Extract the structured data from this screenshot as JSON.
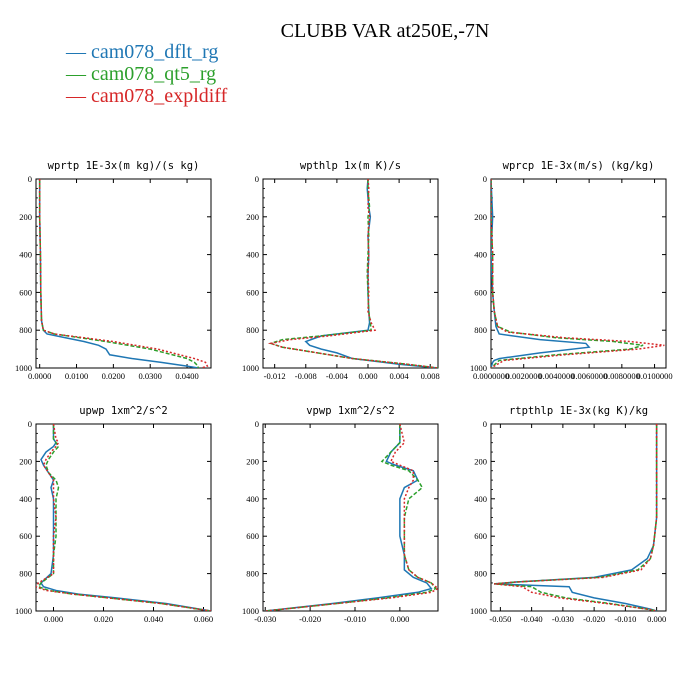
{
  "title": "CLUBB VAR at250E,-7N",
  "legend": [
    {
      "name": "cam078_dflt_rg",
      "color": "#1f77b4"
    },
    {
      "name": "cam078_qt5_rg",
      "color": "#2ca02c"
    },
    {
      "name": "cam078_expldiff",
      "color": "#d62728"
    }
  ],
  "chart_data": [
    {
      "type": "line",
      "title": "wprtp  1E-3x(m kg)/(s kg)",
      "xlim": [
        -0.001,
        0.0465
      ],
      "ylim": [
        1000,
        0
      ],
      "xticks": [
        0,
        0.01,
        0.02,
        0.03,
        0.04
      ],
      "xtick_labels": [
        "0.0000",
        "0.0100",
        "0.0200",
        "0.0300",
        "0.0400"
      ],
      "yticks": [
        0,
        200,
        400,
        600,
        800,
        1000
      ],
      "series": [
        {
          "name": "cam078_dflt_rg",
          "y": [
            0,
            200,
            400,
            600,
            750,
            800,
            820,
            840,
            860,
            880,
            900,
            930,
            950,
            970,
            990,
            1000
          ],
          "x": [
            0,
            0,
            0.0002,
            0.0003,
            0.0005,
            0.001,
            0.002,
            0.007,
            0.012,
            0.016,
            0.018,
            0.019,
            0.025,
            0.033,
            0.04,
            0.043
          ]
        },
        {
          "name": "cam078_qt5_rg",
          "y": [
            0,
            200,
            400,
            600,
            750,
            800,
            820,
            840,
            860,
            880,
            900,
            930,
            950,
            970,
            990,
            1000
          ],
          "x": [
            0,
            0,
            0.0002,
            0.0003,
            0.0005,
            0.001,
            0.004,
            0.011,
            0.018,
            0.024,
            0.03,
            0.036,
            0.04,
            0.042,
            0.043,
            0.043
          ]
        },
        {
          "name": "cam078_expldiff",
          "y": [
            0,
            200,
            400,
            600,
            750,
            800,
            820,
            840,
            860,
            880,
            900,
            930,
            950,
            970,
            990,
            1000
          ],
          "x": [
            0,
            0,
            0.0002,
            0.0003,
            0.0005,
            0.001,
            0.004,
            0.012,
            0.02,
            0.026,
            0.032,
            0.038,
            0.042,
            0.045,
            0.0455,
            0.044
          ]
        }
      ]
    },
    {
      "type": "line",
      "title": "wpthlp  1x(m K)/s",
      "xlim": [
        -0.0135,
        0.009
      ],
      "ylim": [
        1000,
        0
      ],
      "xticks": [
        -0.012,
        -0.008,
        -0.004,
        0,
        0.004,
        0.008
      ],
      "xtick_labels": [
        "-0.012",
        "-0.008",
        "-0.004",
        "0.000",
        "0.004",
        "0.008"
      ],
      "yticks": [
        0,
        200,
        400,
        600,
        800,
        1000
      ],
      "series": [
        {
          "name": "cam078_dflt_rg",
          "y": [
            0,
            50,
            150,
            200,
            300,
            400,
            500,
            600,
            700,
            760,
            800,
            830,
            860,
            880,
            900,
            920,
            950,
            980,
            1000
          ],
          "x": [
            0,
            -0.0001,
            0.0001,
            0.0003,
            0,
            0.0001,
            0,
            0,
            0.0001,
            0.0002,
            0,
            -0.006,
            -0.008,
            -0.0075,
            -0.006,
            -0.004,
            -0.002,
            0.004,
            0.009
          ]
        },
        {
          "name": "cam078_qt5_rg",
          "y": [
            0,
            50,
            150,
            200,
            300,
            400,
            500,
            600,
            700,
            760,
            800,
            830,
            850,
            870,
            890,
            910,
            950,
            980,
            1000
          ],
          "x": [
            0,
            0,
            0.0002,
            0,
            0.0001,
            0,
            -0.0001,
            0,
            0.0001,
            0.0003,
            0.0004,
            -0.006,
            -0.011,
            -0.0125,
            -0.011,
            -0.008,
            -0.002,
            0.005,
            0.009
          ]
        },
        {
          "name": "cam078_expldiff",
          "y": [
            0,
            50,
            150,
            200,
            300,
            400,
            500,
            600,
            700,
            760,
            800,
            830,
            850,
            870,
            890,
            910,
            950,
            980,
            1000
          ],
          "x": [
            0,
            0.0001,
            0,
            0.0002,
            0,
            0.0001,
            0,
            0.0001,
            0,
            0.0004,
            0.0009,
            -0.005,
            -0.01,
            -0.0125,
            -0.011,
            -0.008,
            -0.002,
            0.005,
            0.009
          ]
        }
      ]
    },
    {
      "type": "line",
      "title": "wprcp  1E-3x(m/s) (kg/kg)",
      "xlim": [
        0,
        0.0107
      ],
      "ylim": [
        1000,
        0
      ],
      "xticks": [
        0,
        0.002,
        0.004,
        0.006,
        0.008,
        0.01
      ],
      "xtick_labels": [
        "0.0000000",
        "0.0020000",
        "0.0040000",
        "0.0060000",
        "0.0080000",
        "0.0100000"
      ],
      "yticks": [
        0,
        200,
        400,
        600,
        800,
        1000
      ],
      "series": [
        {
          "name": "cam078_dflt_rg",
          "y": [
            0,
            200,
            400,
            600,
            700,
            780,
            820,
            850,
            870,
            890,
            920,
            950,
            960,
            970,
            1000
          ],
          "x": [
            0,
            0.0001,
            0,
            0.0001,
            0.0002,
            0.0003,
            0.0005,
            0.003,
            0.0058,
            0.006,
            0.003,
            0.0005,
            0.0002,
            0.0001,
            0
          ]
        },
        {
          "name": "cam078_qt5_rg",
          "y": [
            0,
            200,
            400,
            600,
            700,
            780,
            810,
            840,
            860,
            880,
            900,
            930,
            960,
            1000
          ],
          "x": [
            0,
            0,
            0.0001,
            0.0001,
            0.0002,
            0.0004,
            0.0012,
            0.004,
            0.0075,
            0.0093,
            0.0085,
            0.004,
            0.0005,
            0
          ]
        },
        {
          "name": "cam078_expldiff",
          "y": [
            0,
            200,
            400,
            600,
            700,
            780,
            810,
            840,
            860,
            880,
            900,
            930,
            960,
            1000
          ],
          "x": [
            0,
            0,
            0.0001,
            0.0001,
            0.0002,
            0.0004,
            0.001,
            0.0045,
            0.0085,
            0.0106,
            0.009,
            0.0045,
            0.0008,
            0
          ]
        }
      ]
    },
    {
      "type": "line",
      "title": "upwp  1xm^2/s^2",
      "xlim": [
        -0.007,
        0.063
      ],
      "ylim": [
        1000,
        0
      ],
      "xticks": [
        0,
        0.02,
        0.04,
        0.06
      ],
      "xtick_labels": [
        "0.000",
        "0.020",
        "0.040",
        "0.060"
      ],
      "yticks": [
        0,
        200,
        400,
        600,
        800,
        1000
      ],
      "series": [
        {
          "name": "cam078_dflt_rg",
          "y": [
            0,
            80,
            100,
            120,
            150,
            190,
            220,
            260,
            300,
            340,
            400,
            500,
            600,
            700,
            800,
            850,
            870,
            890,
            910,
            930,
            960,
            1000
          ],
          "x": [
            0,
            0,
            0.001,
            0,
            -0.003,
            -0.005,
            -0.004,
            -0.002,
            0,
            -0.001,
            0,
            0,
            0,
            0,
            -0.001,
            -0.005,
            -0.004,
            0.001,
            0.01,
            0.025,
            0.045,
            0.063
          ]
        },
        {
          "name": "cam078_qt5_rg",
          "y": [
            0,
            80,
            100,
            120,
            150,
            190,
            220,
            260,
            300,
            340,
            400,
            500,
            600,
            700,
            800,
            850,
            870,
            890,
            910,
            930,
            960,
            1000
          ],
          "x": [
            0,
            0,
            0.001,
            0.002,
            0,
            -0.002,
            -0.003,
            -0.002,
            0.001,
            0.002,
            0.001,
            0.001,
            0.001,
            0,
            0,
            -0.005,
            -0.006,
            -0.002,
            0.008,
            0.022,
            0.043,
            0.063
          ]
        },
        {
          "name": "cam078_expldiff",
          "y": [
            0,
            80,
            100,
            120,
            150,
            190,
            220,
            260,
            300,
            340,
            400,
            500,
            600,
            700,
            800,
            850,
            870,
            890,
            910,
            930,
            960,
            1000
          ],
          "x": [
            0,
            0.001,
            0.002,
            0.001,
            -0.001,
            -0.003,
            -0.004,
            -0.002,
            0,
            0,
            0,
            0.001,
            0,
            0,
            0,
            -0.006,
            -0.007,
            -0.003,
            0.008,
            0.022,
            0.043,
            0.063
          ]
        }
      ]
    },
    {
      "type": "line",
      "title": "vpwp  1xm^2/s^2",
      "xlim": [
        -0.0305,
        0.0085
      ],
      "ylim": [
        1000,
        0
      ],
      "xticks": [
        -0.03,
        -0.02,
        -0.01,
        0
      ],
      "xtick_labels": [
        "-0.030",
        "-0.020",
        "-0.010",
        "0.000"
      ],
      "yticks": [
        0,
        200,
        400,
        600,
        800,
        1000
      ],
      "series": [
        {
          "name": "cam078_dflt_rg",
          "y": [
            0,
            100,
            150,
            200,
            220,
            250,
            300,
            340,
            400,
            500,
            600,
            700,
            780,
            820,
            850,
            880,
            900,
            930,
            960,
            1000
          ],
          "x": [
            0,
            0,
            -0.002,
            -0.003,
            -0.001,
            0.003,
            0.004,
            0.001,
            0,
            0,
            0,
            0.001,
            0.001,
            0.003,
            0.006,
            0.007,
            0.004,
            -0.005,
            -0.015,
            -0.03
          ]
        },
        {
          "name": "cam078_qt5_rg",
          "y": [
            0,
            100,
            150,
            200,
            220,
            250,
            300,
            340,
            400,
            500,
            600,
            700,
            780,
            820,
            850,
            880,
            900,
            930,
            960,
            1000
          ],
          "x": [
            0,
            0,
            -0.002,
            -0.004,
            -0.002,
            0.002,
            0.004,
            0.005,
            0.002,
            0.001,
            0.001,
            0.001,
            0.002,
            0.004,
            0.007,
            0.008,
            0.006,
            -0.003,
            -0.014,
            -0.03
          ]
        },
        {
          "name": "cam078_expldiff",
          "y": [
            0,
            100,
            150,
            200,
            220,
            250,
            300,
            340,
            400,
            500,
            600,
            700,
            780,
            820,
            850,
            880,
            900,
            930,
            960,
            1000
          ],
          "x": [
            0,
            0.001,
            -0.001,
            -0.002,
            0,
            0.003,
            0.003,
            0.002,
            0.001,
            0.001,
            0.001,
            0.001,
            0.002,
            0.004,
            0.007,
            0.0085,
            0.007,
            -0.002,
            -0.014,
            -0.03
          ]
        }
      ]
    },
    {
      "type": "line",
      "title": "rtpthlp  1E-3x(kg K)/kg",
      "xlim": [
        -0.053,
        0.003
      ],
      "ylim": [
        1000,
        0
      ],
      "xticks": [
        -0.05,
        -0.04,
        -0.03,
        -0.02,
        -0.01,
        0
      ],
      "xtick_labels": [
        "-0.050",
        "-0.040",
        "-0.030",
        "-0.020",
        "-0.010",
        "0.000"
      ],
      "yticks": [
        0,
        200,
        400,
        600,
        800,
        1000
      ],
      "series": [
        {
          "name": "cam078_dflt_rg",
          "y": [
            0,
            300,
            500,
            650,
            720,
            780,
            820,
            845,
            855,
            870,
            900,
            930,
            960,
            990,
            1000
          ],
          "x": [
            0,
            0,
            0,
            -0.001,
            -0.003,
            -0.008,
            -0.02,
            -0.045,
            -0.052,
            -0.028,
            -0.027,
            -0.02,
            -0.01,
            -0.002,
            0
          ]
        },
        {
          "name": "cam078_qt5_rg",
          "y": [
            0,
            300,
            500,
            650,
            720,
            780,
            820,
            845,
            855,
            870,
            900,
            930,
            960,
            990,
            1000
          ],
          "x": [
            0,
            0,
            0,
            -0.001,
            -0.002,
            -0.006,
            -0.018,
            -0.045,
            -0.052,
            -0.04,
            -0.037,
            -0.029,
            -0.015,
            -0.003,
            0
          ]
        },
        {
          "name": "cam078_expldiff",
          "y": [
            0,
            300,
            500,
            650,
            720,
            780,
            820,
            845,
            855,
            870,
            900,
            930,
            960,
            990,
            1000
          ],
          "x": [
            0,
            0,
            0,
            -0.001,
            -0.002,
            -0.005,
            -0.017,
            -0.045,
            -0.052,
            -0.043,
            -0.04,
            -0.031,
            -0.016,
            -0.003,
            0
          ]
        }
      ]
    }
  ]
}
